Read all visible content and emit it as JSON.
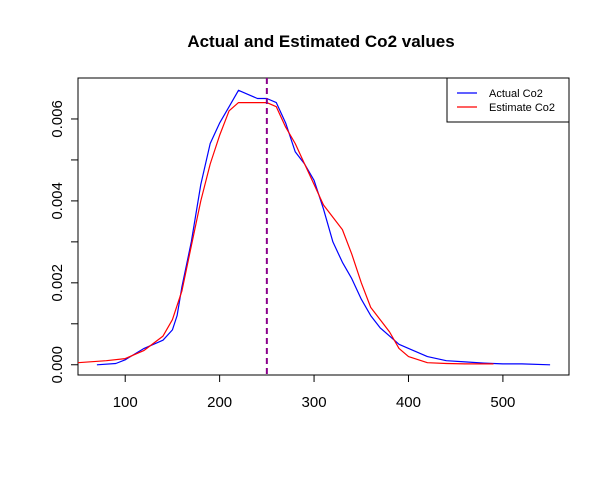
{
  "chart_data": {
    "type": "line",
    "title": "Actual and Estimated Co2 values",
    "xlabel": "",
    "ylabel": "",
    "xlim": [
      50,
      570
    ],
    "ylim": [
      -0.00025,
      0.007
    ],
    "x_ticks": [
      100,
      200,
      300,
      400,
      500
    ],
    "x_tick_labels": [
      "100",
      "200",
      "300",
      "400",
      "500"
    ],
    "y_ticks": [
      0.0,
      0.001,
      0.002,
      0.003,
      0.004,
      0.005,
      0.006
    ],
    "y_tick_labels": [
      "0.000",
      "",
      "0.002",
      "",
      "0.004",
      "",
      "0.006"
    ],
    "grid": false,
    "legend_position": "top-right",
    "vline": {
      "x": 250,
      "color": "#8B008B",
      "style": "dashed"
    },
    "series": [
      {
        "name": "Actual Co2",
        "color": "#0000ff",
        "points": [
          [
            70,
            0.0
          ],
          [
            90,
            3e-05
          ],
          [
            100,
            0.00012
          ],
          [
            120,
            0.0004
          ],
          [
            140,
            0.0006
          ],
          [
            150,
            0.00085
          ],
          [
            155,
            0.0012
          ],
          [
            160,
            0.0019
          ],
          [
            170,
            0.003
          ],
          [
            180,
            0.0044
          ],
          [
            190,
            0.0054
          ],
          [
            200,
            0.0059
          ],
          [
            210,
            0.0063
          ],
          [
            220,
            0.0067
          ],
          [
            230,
            0.0066
          ],
          [
            240,
            0.0065
          ],
          [
            250,
            0.0065
          ],
          [
            260,
            0.0064
          ],
          [
            270,
            0.0059
          ],
          [
            280,
            0.0052
          ],
          [
            290,
            0.0049
          ],
          [
            300,
            0.0045
          ],
          [
            310,
            0.0038
          ],
          [
            320,
            0.003
          ],
          [
            330,
            0.0025
          ],
          [
            340,
            0.0021
          ],
          [
            350,
            0.0016
          ],
          [
            360,
            0.0012
          ],
          [
            370,
            0.0009
          ],
          [
            380,
            0.0007
          ],
          [
            390,
            0.0005
          ],
          [
            400,
            0.0004
          ],
          [
            420,
            0.0002
          ],
          [
            440,
            0.0001
          ],
          [
            460,
            7e-05
          ],
          [
            480,
            4e-05
          ],
          [
            500,
            2e-05
          ],
          [
            520,
            2e-05
          ],
          [
            550,
            0.0
          ]
        ]
      },
      {
        "name": "Estimate Co2",
        "color": "#ff0000",
        "points": [
          [
            50,
            5e-05
          ],
          [
            80,
            0.0001
          ],
          [
            100,
            0.00015
          ],
          [
            120,
            0.00035
          ],
          [
            140,
            0.0007
          ],
          [
            150,
            0.0011
          ],
          [
            160,
            0.0018
          ],
          [
            170,
            0.0029
          ],
          [
            180,
            0.004
          ],
          [
            190,
            0.0049
          ],
          [
            200,
            0.0056
          ],
          [
            210,
            0.0062
          ],
          [
            220,
            0.0064
          ],
          [
            230,
            0.0064
          ],
          [
            240,
            0.0064
          ],
          [
            250,
            0.0064
          ],
          [
            260,
            0.0063
          ],
          [
            270,
            0.0058
          ],
          [
            280,
            0.0054
          ],
          [
            290,
            0.0049
          ],
          [
            300,
            0.0044
          ],
          [
            310,
            0.0039
          ],
          [
            320,
            0.0036
          ],
          [
            330,
            0.0033
          ],
          [
            340,
            0.0027
          ],
          [
            350,
            0.002
          ],
          [
            360,
            0.0014
          ],
          [
            370,
            0.0011
          ],
          [
            380,
            0.0008
          ],
          [
            390,
            0.0004
          ],
          [
            400,
            0.0002
          ],
          [
            420,
            5e-05
          ],
          [
            440,
            3e-05
          ],
          [
            460,
            2e-05
          ],
          [
            490,
            2e-05
          ]
        ]
      }
    ]
  }
}
